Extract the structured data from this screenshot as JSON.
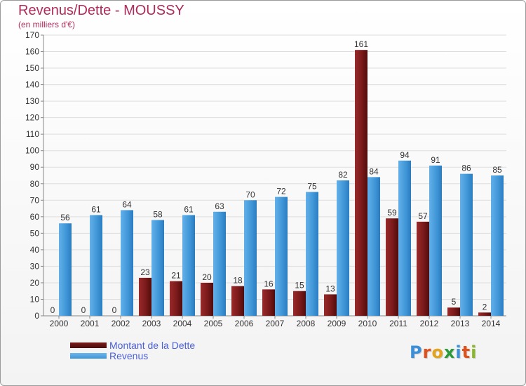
{
  "header": {
    "title": "Revenus/Dette - MOUSSY",
    "subtitle": "(en milliers d'€)"
  },
  "colors": {
    "debt": "#7a1a1a",
    "revenue": "#3f95d6",
    "title": "#b02a5a",
    "legend_text": "#4a5fd8"
  },
  "chart_data": {
    "type": "bar",
    "title": "Revenus/Dette - MOUSSY",
    "subtitle": "(en milliers d'€)",
    "categories": [
      "2000",
      "2001",
      "2002",
      "2003",
      "2004",
      "2005",
      "2006",
      "2007",
      "2008",
      "2009",
      "2010",
      "2011",
      "2012",
      "2013",
      "2014"
    ],
    "series": [
      {
        "name": "Montant de la Dette",
        "color": "#7a1a1a",
        "values": [
          0,
          0,
          0,
          23,
          21,
          20,
          18,
          16,
          15,
          13,
          161,
          59,
          57,
          5,
          2
        ]
      },
      {
        "name": "Revenus",
        "color": "#3f95d6",
        "values": [
          56,
          61,
          64,
          58,
          61,
          63,
          70,
          72,
          75,
          82,
          84,
          94,
          91,
          86,
          85
        ]
      }
    ],
    "ylim": [
      0,
      170
    ],
    "yticks": [
      0,
      10,
      20,
      30,
      40,
      50,
      60,
      70,
      80,
      90,
      100,
      110,
      120,
      130,
      140,
      150,
      160,
      170
    ],
    "grid": true,
    "legend_position": "bottom-left"
  },
  "legend": {
    "items": [
      {
        "label": "Montant de la Dette",
        "color": "#7a1a1a"
      },
      {
        "label": "Revenus",
        "color": "#3f95d6"
      }
    ]
  },
  "logo": {
    "letters": [
      "P",
      "r",
      "o",
      "x",
      "i",
      "t",
      "i"
    ],
    "colors": [
      "#3a8fd8",
      "#e0501c",
      "#e3a31c",
      "#2a9a3a",
      "#3a8fd8",
      "#e0501c",
      "#8ab82a"
    ]
  }
}
